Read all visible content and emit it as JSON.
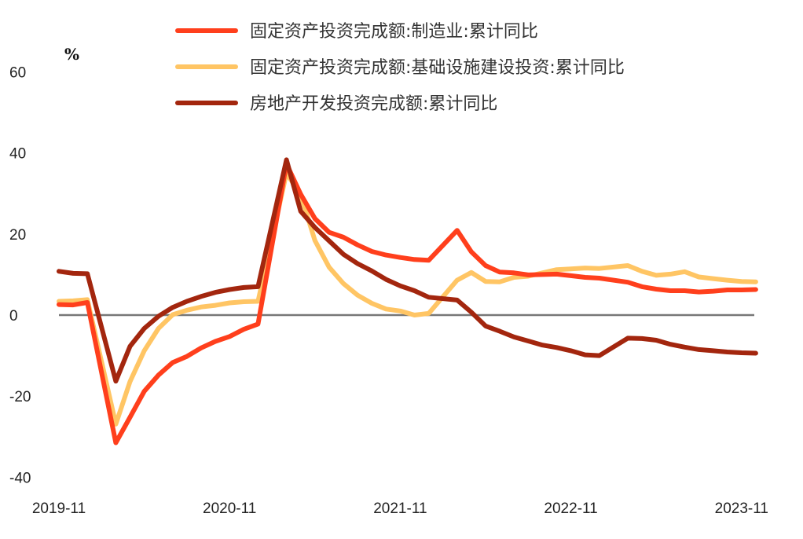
{
  "chart_data": {
    "type": "line",
    "title": "",
    "xlabel": "",
    "ylabel": "%",
    "ylim": [
      -40,
      60
    ],
    "y_ticks": [
      "60",
      "40",
      "20",
      "0",
      "-20",
      "-40"
    ],
    "x_ticks": [
      "2019-11",
      "2020-11",
      "2021-11",
      "2022-11",
      "2023-11"
    ],
    "grid": false,
    "zero_line": true,
    "legend_position": "top",
    "x": [
      "2019-11",
      "2019-12",
      "2020-01",
      "2020-03",
      "2020-04",
      "2020-05",
      "2020-06",
      "2020-07",
      "2020-08",
      "2020-09",
      "2020-10",
      "2020-11",
      "2020-12",
      "2021-01",
      "2021-03",
      "2021-04",
      "2021-05",
      "2021-06",
      "2021-07",
      "2021-08",
      "2021-09",
      "2021-10",
      "2021-11",
      "2021-12",
      "2022-01",
      "2022-03",
      "2022-04",
      "2022-05",
      "2022-06",
      "2022-07",
      "2022-08",
      "2022-09",
      "2022-10",
      "2022-11",
      "2022-12",
      "2023-01",
      "2023-03",
      "2023-04",
      "2023-05",
      "2023-06",
      "2023-07",
      "2023-08",
      "2023-09",
      "2023-10",
      "2023-11",
      "2023-12"
    ],
    "series": [
      {
        "name": "固定资产投资完成额:制造业:累计同比",
        "color": "#FF3F1C",
        "values": [
          2.6,
          2.5,
          3.1,
          -31.5,
          -25.2,
          -18.8,
          -14.8,
          -11.7,
          -10.2,
          -8.1,
          -6.5,
          -5.3,
          -3.5,
          -2.2,
          37.3,
          29.8,
          23.8,
          20.4,
          19.2,
          17.3,
          15.7,
          14.8,
          14.2,
          13.7,
          13.5,
          20.9,
          15.6,
          12.2,
          10.6,
          10.4,
          9.9,
          10.0,
          10.1,
          9.7,
          9.3,
          9.1,
          8.1,
          7.0,
          6.4,
          6.0,
          6.0,
          5.7,
          5.9,
          6.2,
          6.2,
          6.3
        ]
      },
      {
        "name": "固定资产投资完成额:基础设施建设投资:累计同比",
        "color": "#FFC564",
        "values": [
          3.4,
          3.5,
          3.8,
          -26.9,
          -16.4,
          -8.8,
          -3.3,
          0.1,
          1.2,
          2.0,
          2.4,
          3.0,
          3.3,
          3.4,
          35.0,
          29.7,
          18.4,
          11.8,
          7.8,
          4.9,
          2.9,
          1.5,
          1.0,
          0.0,
          0.4,
          8.6,
          10.5,
          8.3,
          8.2,
          9.3,
          9.6,
          10.4,
          11.2,
          11.4,
          11.6,
          11.5,
          12.2,
          10.8,
          9.8,
          10.1,
          10.7,
          9.4,
          9.0,
          8.6,
          8.3,
          8.2
        ]
      },
      {
        "name": "房地产开发投资完成额:累计同比",
        "color": "#A3260E",
        "values": [
          10.8,
          10.3,
          10.2,
          -16.3,
          -7.7,
          -3.3,
          -0.3,
          1.9,
          3.4,
          4.6,
          5.6,
          6.3,
          6.8,
          7.0,
          38.3,
          25.6,
          21.6,
          18.3,
          15.0,
          12.7,
          10.9,
          8.8,
          7.2,
          6.0,
          4.4,
          3.7,
          0.7,
          -2.7,
          -4.0,
          -5.4,
          -6.4,
          -7.4,
          -8.0,
          -8.8,
          -9.8,
          -10.0,
          -5.7,
          -5.8,
          -6.2,
          -7.2,
          -7.9,
          -8.5,
          -8.8,
          -9.1,
          -9.3,
          -9.4
        ]
      }
    ]
  }
}
